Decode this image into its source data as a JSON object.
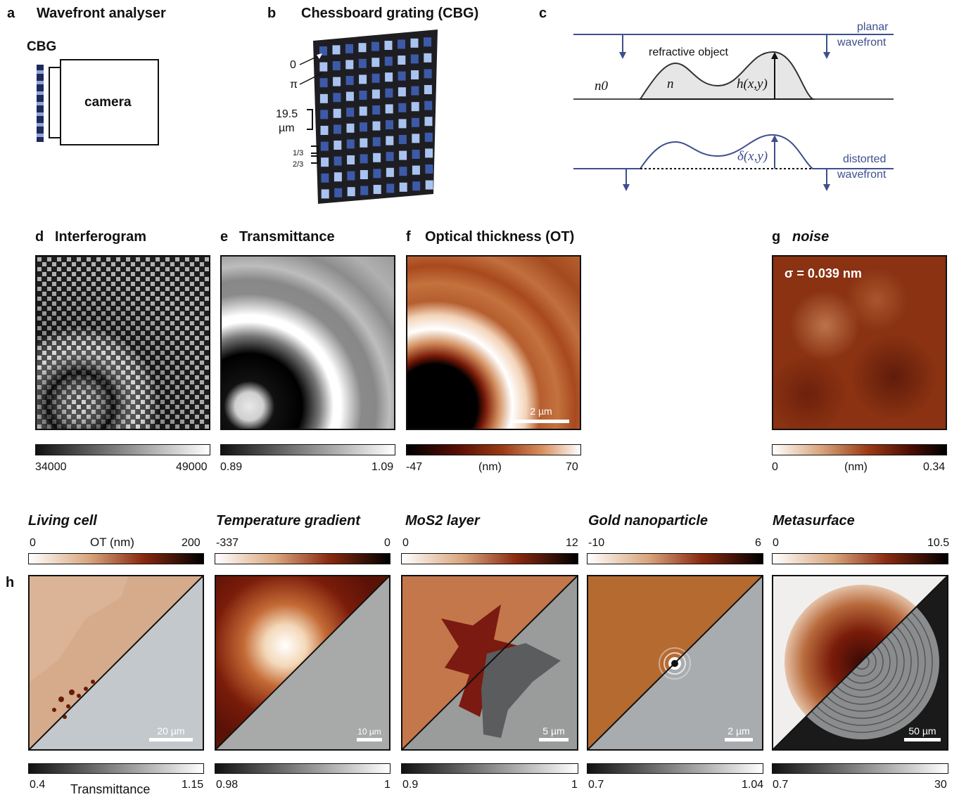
{
  "row1": {
    "a": {
      "letter": "a",
      "title": "Wavefront analyser",
      "cbg": "CBG",
      "camera": "camera"
    },
    "b": {
      "letter": "b",
      "title": "Chessboard grating (CBG)",
      "zero": "0",
      "pi": "π",
      "pitch": "19.5",
      "pitch_unit": "µm",
      "frac1": "1/3",
      "frac2": "2/3"
    },
    "c": {
      "letter": "c",
      "planar1": "planar",
      "planar2": "wavefront",
      "object": "refractive object",
      "n0": "n0",
      "n": "n",
      "h": "h(x,y)",
      "delta": "δ(x,y)",
      "distorted1": "distorted",
      "distorted2": "wavefront"
    }
  },
  "row2": {
    "d": {
      "letter": "d",
      "title": "Interferogram",
      "min": "34000",
      "max": "49000"
    },
    "e": {
      "letter": "e",
      "title": "Transmittance",
      "min": "0.89",
      "max": "1.09"
    },
    "f": {
      "letter": "f",
      "title": "Optical thickness (OT)",
      "min": "-47",
      "unit": "(nm)",
      "max": "70",
      "scale": "2 µm"
    },
    "g": {
      "letter": "g",
      "title": "noise",
      "sigma": "σ = 0.039 nm",
      "min": "0",
      "unit": "(nm)",
      "max": "0.34"
    }
  },
  "row3": {
    "letter": "h",
    "ot_label": "OT (nm)",
    "trans_label": "Transmittance",
    "panels": [
      {
        "title": "Living cell",
        "ot_min": "0",
        "ot_max": "200",
        "t_min": "0.4",
        "t_max": "1.15",
        "scale": "20 µm"
      },
      {
        "title": "Temperature gradient",
        "ot_min": "-337",
        "ot_max": "0",
        "t_min": "0.98",
        "t_max": "1",
        "scale": "10 µm"
      },
      {
        "title": "MoS2 layer",
        "ot_min": "0",
        "ot_max": "12",
        "t_min": "0.9",
        "t_max": "1",
        "scale": "5 µm"
      },
      {
        "title": "Gold nanoparticle",
        "ot_min": "-10",
        "ot_max": "6",
        "t_min": "0.7",
        "t_max": "1.04",
        "scale": "2 µm"
      },
      {
        "title": "Metasurface",
        "ot_min": "0",
        "ot_max": "10.5",
        "t_min": "0.7",
        "t_max": "30",
        "scale": "50 µm"
      }
    ]
  },
  "colors": {
    "wave": "#3f4f8c",
    "ot_dark": "#1a0505",
    "ot_mid": "#8b2a0e",
    "ot_light": "#c9804a"
  }
}
